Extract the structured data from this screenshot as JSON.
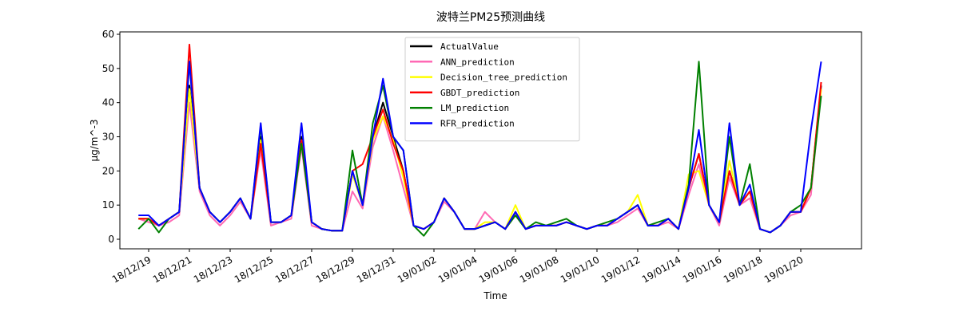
{
  "chart_data": {
    "type": "line",
    "title": "波特兰PM25预测曲线",
    "x_label": "Time",
    "y_label": "μg/m^-3",
    "categories": [
      null,
      "18/12/19",
      null,
      null,
      null,
      "18/12/21",
      null,
      null,
      null,
      "18/12/23",
      null,
      null,
      null,
      "18/12/25",
      null,
      null,
      null,
      "18/12/27",
      null,
      null,
      null,
      "18/12/29",
      null,
      null,
      null,
      "18/12/31",
      null,
      null,
      null,
      "19/01/02",
      null,
      null,
      null,
      "19/01/04",
      null,
      null,
      null,
      "19/01/06",
      null,
      null,
      null,
      "19/01/08",
      null,
      null,
      null,
      "19/01/10",
      null,
      null,
      null,
      "19/01/12",
      null,
      null,
      null,
      "19/01/14",
      null,
      null,
      null,
      "19/01/16",
      null,
      null,
      null,
      "19/01/18",
      null,
      null,
      null,
      "19/01/20",
      null,
      null
    ],
    "series": [
      {
        "name": "ActualValue",
        "color": "#000000",
        "values": [
          6,
          6,
          4,
          6,
          8,
          45,
          15,
          8,
          5,
          8,
          12,
          6,
          30,
          5,
          5,
          7,
          30,
          5,
          3,
          2.5,
          2.5,
          20,
          10,
          30,
          40,
          30,
          20,
          4,
          3,
          5,
          12,
          8,
          3,
          3,
          4,
          5,
          3,
          8,
          3,
          4,
          4,
          4,
          5,
          4,
          3,
          4,
          4,
          6,
          8,
          10,
          4,
          4,
          6,
          3,
          15,
          25,
          10,
          5,
          20,
          10,
          14,
          3,
          2,
          4,
          8,
          8,
          15,
          45
        ]
      },
      {
        "name": "ANN_prediction",
        "color": "#ff69b4",
        "values": [
          6,
          5,
          4,
          5,
          7,
          40,
          14,
          7,
          4,
          7,
          11,
          6,
          26,
          4,
          5,
          6,
          27,
          4,
          3,
          2.5,
          2.5,
          14,
          9,
          27,
          36,
          26,
          15,
          4,
          3,
          5,
          11,
          8,
          3,
          3,
          8,
          5,
          3,
          7,
          3,
          4,
          4,
          4,
          5,
          4,
          3,
          4,
          4,
          5,
          7,
          9,
          4,
          4,
          5,
          3,
          13,
          22,
          10,
          4,
          18,
          10,
          12,
          3,
          2,
          4,
          7,
          8,
          13,
          44
        ]
      },
      {
        "name": "Decision_tree_prediction",
        "color": "#ffff00",
        "values": [
          6,
          6,
          4,
          6,
          8,
          44,
          15,
          8,
          5,
          8,
          12,
          6,
          29,
          5,
          5,
          7,
          29,
          5,
          3,
          2.5,
          2.5,
          19,
          10,
          29,
          36,
          29,
          18,
          4,
          3,
          5,
          12,
          8,
          3,
          3,
          5,
          5,
          3,
          10,
          3,
          4,
          4,
          4,
          5,
          4,
          3,
          4,
          4,
          6,
          8,
          13,
          4,
          4,
          6,
          3,
          19,
          20,
          10,
          5,
          23,
          10,
          14,
          3,
          2,
          4,
          8,
          8,
          15,
          44
        ]
      },
      {
        "name": "GBDT_prediction",
        "color": "#ff0000",
        "values": [
          6,
          6,
          4,
          6,
          8,
          57,
          15,
          8,
          5,
          8,
          12,
          6,
          28,
          5,
          5,
          7,
          29,
          5,
          3,
          2.5,
          2.5,
          20,
          22,
          30,
          38,
          28,
          20,
          4,
          3,
          5,
          12,
          8,
          3,
          3,
          4,
          5,
          3,
          8,
          3,
          4,
          4,
          4,
          5,
          4,
          3,
          4,
          4,
          6,
          8,
          10,
          4,
          4,
          6,
          3,
          15,
          25,
          10,
          5,
          20,
          10,
          14,
          3,
          2,
          4,
          8,
          8,
          15,
          46
        ]
      },
      {
        "name": "LM_prediction",
        "color": "#008000",
        "values": [
          3,
          6,
          2,
          6,
          8,
          52,
          15,
          8,
          5,
          8,
          12,
          6,
          33,
          5,
          5,
          7,
          28,
          5,
          3,
          2.5,
          2.5,
          26,
          10,
          34,
          45,
          30,
          26,
          4,
          1,
          5,
          12,
          8,
          3,
          3,
          4,
          5,
          3,
          7,
          3,
          5,
          4,
          5,
          6,
          4,
          3,
          4,
          5,
          6,
          8,
          10,
          4,
          5,
          6,
          3,
          16,
          52,
          10,
          5,
          30,
          10,
          22,
          3,
          2,
          4,
          8,
          10,
          15,
          42
        ]
      },
      {
        "name": "RFR_prediction",
        "color": "#0000ff",
        "values": [
          7,
          7,
          4,
          6,
          8,
          52,
          15,
          8,
          5,
          8,
          12,
          6,
          34,
          5,
          5,
          7,
          34,
          5,
          3,
          2.5,
          2.5,
          20,
          10,
          30,
          47,
          30,
          26,
          4,
          3,
          5,
          12,
          8,
          3,
          3,
          4,
          5,
          3,
          8,
          3,
          4,
          4,
          4,
          5,
          4,
          3,
          4,
          4,
          6,
          8,
          10,
          4,
          4,
          6,
          3,
          15,
          32,
          10,
          5,
          34,
          10,
          16,
          3,
          2,
          4,
          8,
          8,
          32,
          52
        ]
      }
    ],
    "ylim": [
      -2.8,
      60.7
    ],
    "yticks": [
      0,
      10,
      20,
      30,
      40,
      50,
      60
    ],
    "legend": "upper center"
  }
}
